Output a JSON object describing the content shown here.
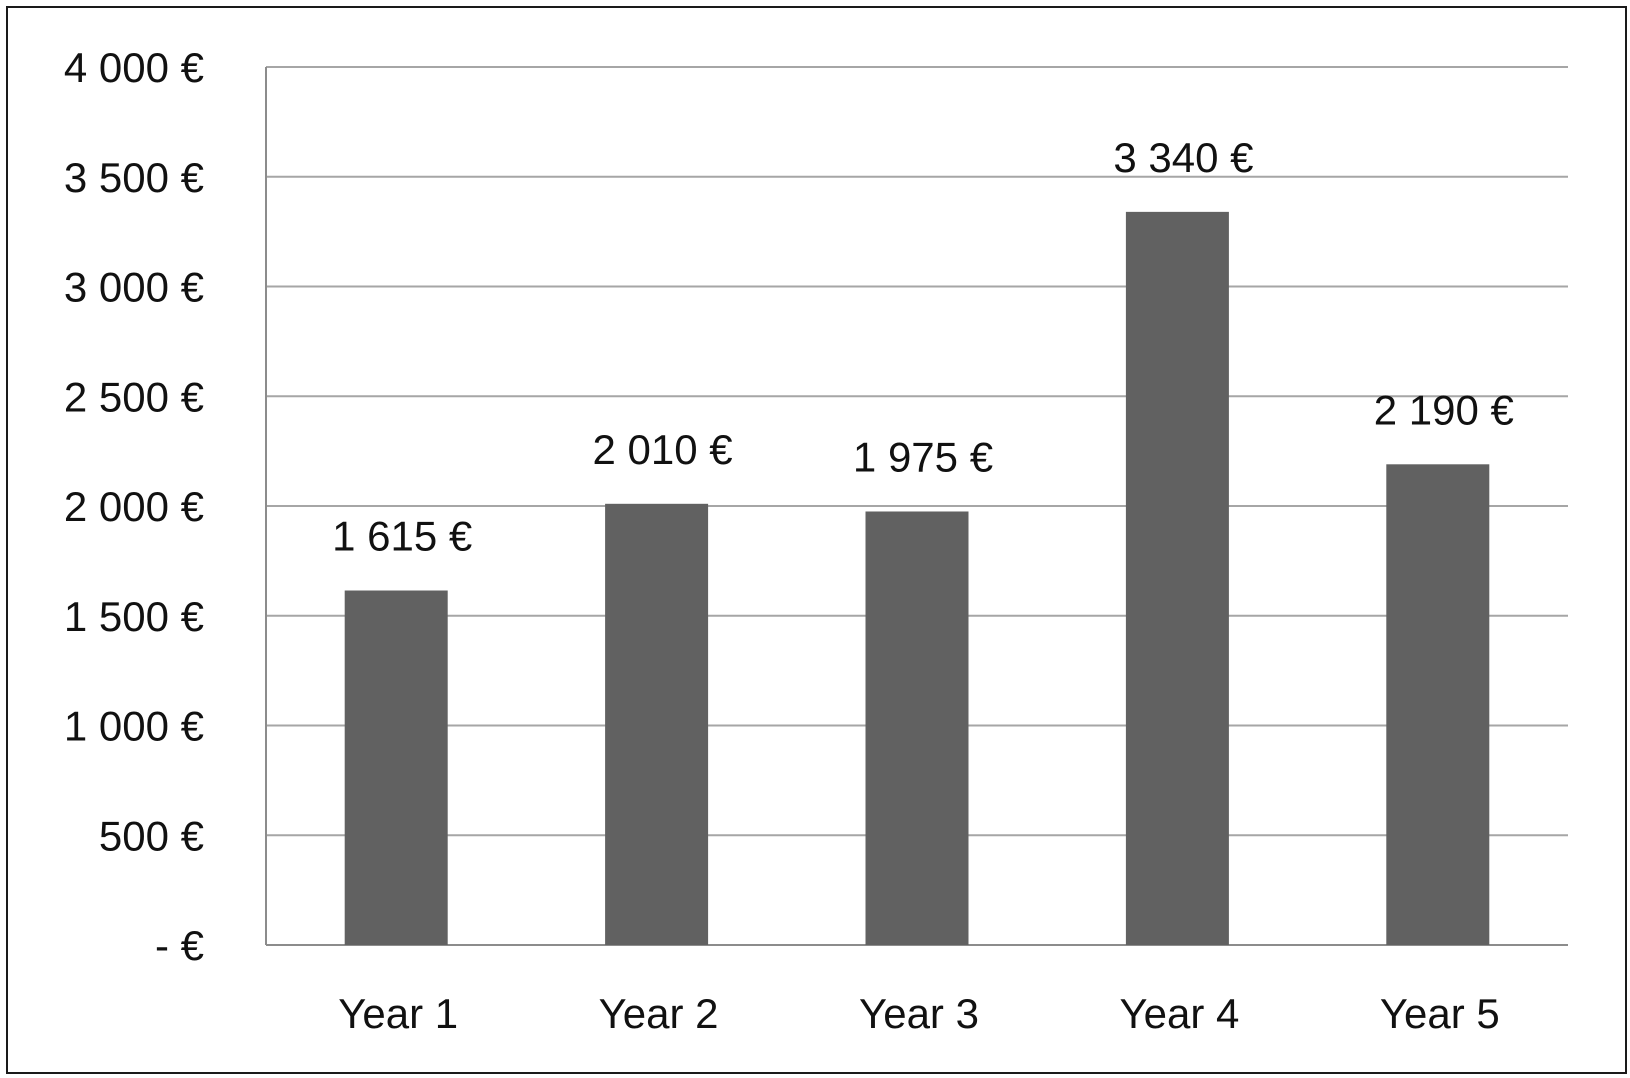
{
  "chart_data": {
    "type": "bar",
    "categories": [
      "Year 1",
      "Year 2",
      "Year 3",
      "Year 4",
      "Year 5"
    ],
    "values": [
      1615,
      2010,
      1975,
      3340,
      2190
    ],
    "data_labels": [
      "1 615 €",
      "2 010 €",
      "1 975 €",
      "3 340 €",
      "2 190 €"
    ],
    "title": "",
    "xlabel": "",
    "ylabel": "",
    "ylim": [
      0,
      4000
    ],
    "yticks": [
      0,
      500,
      1000,
      1500,
      2000,
      2500,
      3000,
      3500,
      4000
    ],
    "ytick_labels": [
      "-   €",
      "500 €",
      "1 000 €",
      "1 500 €",
      "2 000 €",
      "2 500 €",
      "3 000 €",
      "3 500 €",
      "4 000 €"
    ],
    "grid": true,
    "legend": "none",
    "bar_color": "#616161",
    "grid_color": "#a6a6a6",
    "axis_color": "#8c8c8c"
  }
}
